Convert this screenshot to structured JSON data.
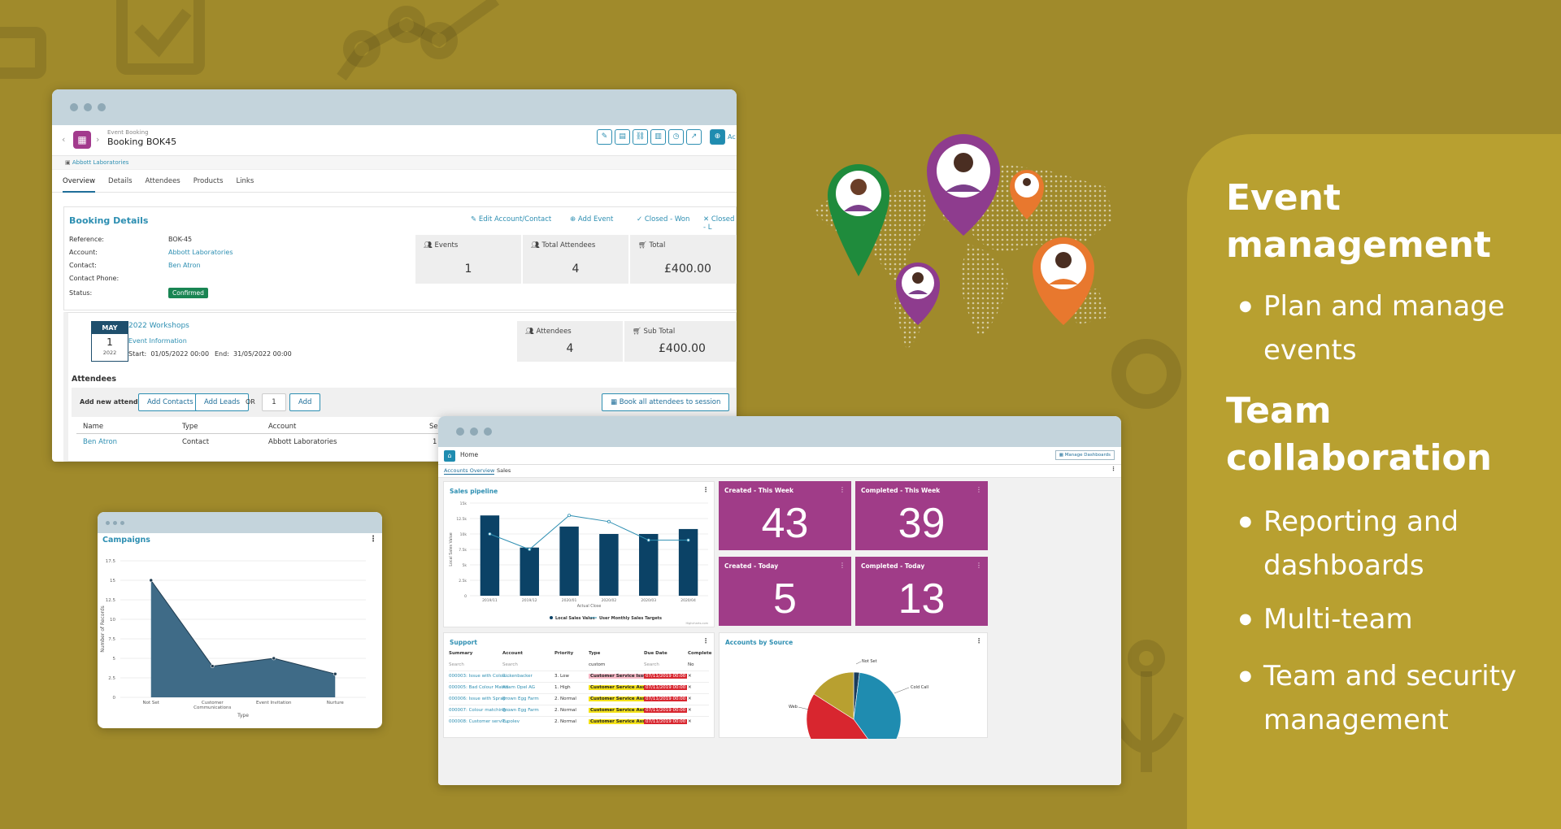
{
  "booking": {
    "module": "Event Booking",
    "title": "Booking BOK45",
    "related": "Abbott Laboratories",
    "tabs": [
      "Overview",
      "Details",
      "Attendees",
      "Products",
      "Links"
    ],
    "toolbar_cut": "Ac",
    "details_title": "Booking Details",
    "actions": [
      "Edit Account/Contact",
      "Add Event",
      "Closed - Won",
      "Closed - L"
    ],
    "fields": {
      "reference_label": "Reference:",
      "reference": "BOK-45",
      "account_label": "Account:",
      "account": "Abbott Laboratories",
      "contact_label": "Contact:",
      "contact": "Ben Atron",
      "phone_label": "Contact Phone:",
      "status_label": "Status:",
      "status": "Confirmed"
    },
    "stats": {
      "events_label": "Events",
      "events": "1",
      "attendees_label": "Total Attendees",
      "attendees": "4",
      "total_label": "Total",
      "total": "£400.00"
    },
    "event": {
      "month": "MAY",
      "day": "1",
      "year": "2022",
      "name": "2022 Workshops",
      "info": "Event Information",
      "start_label": "Start:",
      "start": "01/05/2022 00:00",
      "end_label": "End:",
      "end": "31/05/2022 00:00",
      "attendees_label": "Attendees",
      "attendees": "4",
      "subtotal_label": "Sub Total",
      "subtotal": "£400.00"
    },
    "attendees_section": "Attendees",
    "add_label": "Add new attendees:",
    "add_contacts": "Add Contacts",
    "add_leads": "Add Leads",
    "or": "OR",
    "qty": "1",
    "add": "Add",
    "book_all": "Book all attendees to session",
    "table_headers": [
      "Name",
      "Type",
      "Account",
      "Sess"
    ],
    "table_row": [
      "Ben Atron",
      "Contact",
      "Abbott Laboratories",
      "1"
    ]
  },
  "campaigns": {
    "title": "Campaigns",
    "chart_data": {
      "type": "area",
      "categories": [
        "Not Set",
        "Customer Communications",
        "Event Invitation",
        "Nurture"
      ],
      "values": [
        15,
        4,
        5,
        3
      ],
      "xlabel": "Type",
      "ylabel": "Number of Records",
      "ylim": [
        0,
        17.5
      ],
      "ticks": [
        "0",
        "2.5",
        "5",
        "7.5",
        "10",
        "12.5",
        "15",
        "17.5"
      ],
      "color": "#3f6b87"
    }
  },
  "dashboard": {
    "home": "Home",
    "manage": "Manage Dashboards",
    "tabs": [
      "Accounts Overview",
      "Sales"
    ],
    "pipeline_title": "Sales pipeline",
    "pipeline_chart": {
      "type": "bar",
      "categories": [
        "2019/11",
        "2019/12",
        "2020/01",
        "2020/02",
        "2020/03",
        "2020/04"
      ],
      "series": [
        {
          "name": "Local Sales Value",
          "values": [
            13,
            7.8,
            11.2,
            10,
            10,
            10.8
          ]
        },
        {
          "name": "User Monthly Sales Targets",
          "values": [
            10,
            7.5,
            13,
            12,
            9,
            9
          ]
        }
      ],
      "xlabel": "Actual Close",
      "ylabel": "Local Sales Value",
      "ylim": [
        0,
        15
      ],
      "ticks": [
        "0",
        "2.5k",
        "5k",
        "7.5k",
        "10k",
        "12.5k",
        "15k"
      ],
      "credit": "Highcharts.com",
      "bar_color": "#0b4266",
      "line_color": "#2e8fb2"
    },
    "tiles": [
      {
        "title": "Created - This Week",
        "value": "43"
      },
      {
        "title": "Completed - This Week",
        "value": "39"
      },
      {
        "title": "Created - Today",
        "value": "5"
      },
      {
        "title": "Completed - Today",
        "value": "13"
      }
    ],
    "support_title": "Support",
    "support_headers": [
      "Summary",
      "Account",
      "Priority",
      "Type",
      "Due Date",
      "Complete"
    ],
    "support_filters": [
      "Search",
      "Search",
      "",
      "custom",
      "Search",
      "No"
    ],
    "support_rows": [
      [
        "000003: Issue with Colou...",
        "Rickenbacker",
        "3. Low",
        "Customer Service Issue",
        "07/11/2019 00:00",
        "✕"
      ],
      [
        "000005: Bad Colour Match",
        "Adam Opel AG",
        "1. High",
        "Customer Service Assi...",
        "07/11/2019 00:00",
        "✕"
      ],
      [
        "000006: Issue with Spray",
        "Brown Egg Farm",
        "2. Normal",
        "Customer Service Assi...",
        "07/11/2019 00:00",
        "✕"
      ],
      [
        "000007: Colour matching...",
        "Brown Egg Farm",
        "2. Normal",
        "Customer Service Assi...",
        "07/11/2019 00:00",
        "✕"
      ],
      [
        "000008: Customer servic...",
        "Tupolev",
        "2. Normal",
        "Customer Service Assi...",
        "07/11/2019 00:00",
        "✕"
      ]
    ],
    "source_title": "Accounts by Source",
    "source_chart": {
      "type": "pie",
      "labels": [
        "Not Set",
        "Cold Call",
        "Web"
      ],
      "values": [
        2,
        38,
        44
      ],
      "other_value": 16,
      "colors": [
        "#1a3d5c",
        "#1f8cb0",
        "#d8262f",
        "#b8a030"
      ]
    }
  },
  "feature": {
    "heading1": "Event management",
    "items1": [
      "Plan and manage events"
    ],
    "heading2": "Team collaboration",
    "items2": [
      "Reporting and dashboards",
      "Multi-team",
      "Team and security management"
    ]
  }
}
